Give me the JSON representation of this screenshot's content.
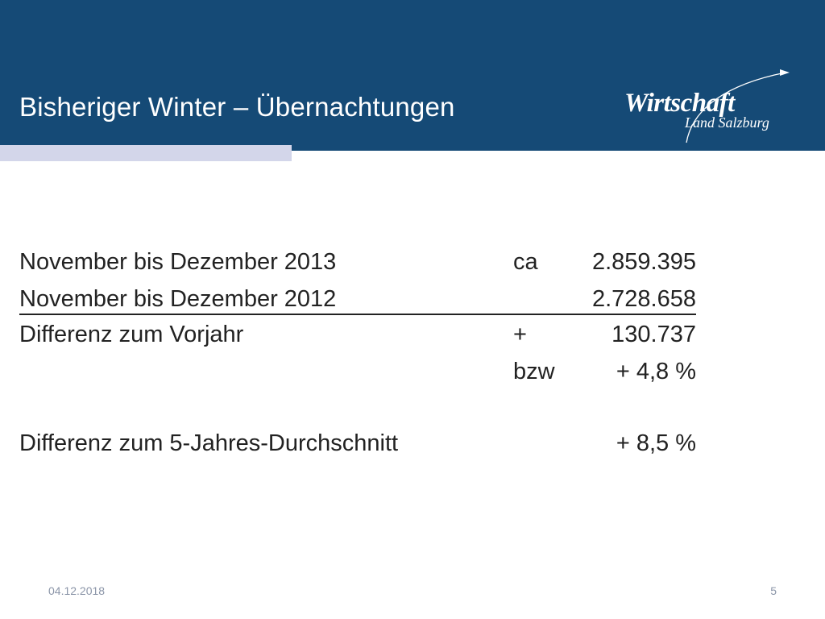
{
  "slide": {
    "title": "Bisheriger Winter – Übernachtungen",
    "logo": {
      "main": "Wirtschaft",
      "sub": "Land Salzburg"
    }
  },
  "rows": [
    {
      "label": "November bis Dezember 2013",
      "prefix": "ca",
      "value": "2.859.395"
    },
    {
      "label": "November bis Dezember 2012",
      "prefix": "",
      "value": "2.728.658"
    },
    {
      "label": "Differenz zum Vorjahr",
      "prefix": "+",
      "value": "130.737"
    },
    {
      "label": "",
      "prefix": "bzw",
      "value": "+ 4,8 %"
    },
    {
      "label": "Differenz zum 5-Jahres-Durchschnitt",
      "prefix": "",
      "value": "+ 8,5 %"
    }
  ],
  "footer": {
    "date": "04.12.2018",
    "page": "5"
  },
  "colors": {
    "header": "#154a76",
    "accent": "#d3d6ea",
    "text": "#222222",
    "footer_text": "#8b95a8"
  }
}
